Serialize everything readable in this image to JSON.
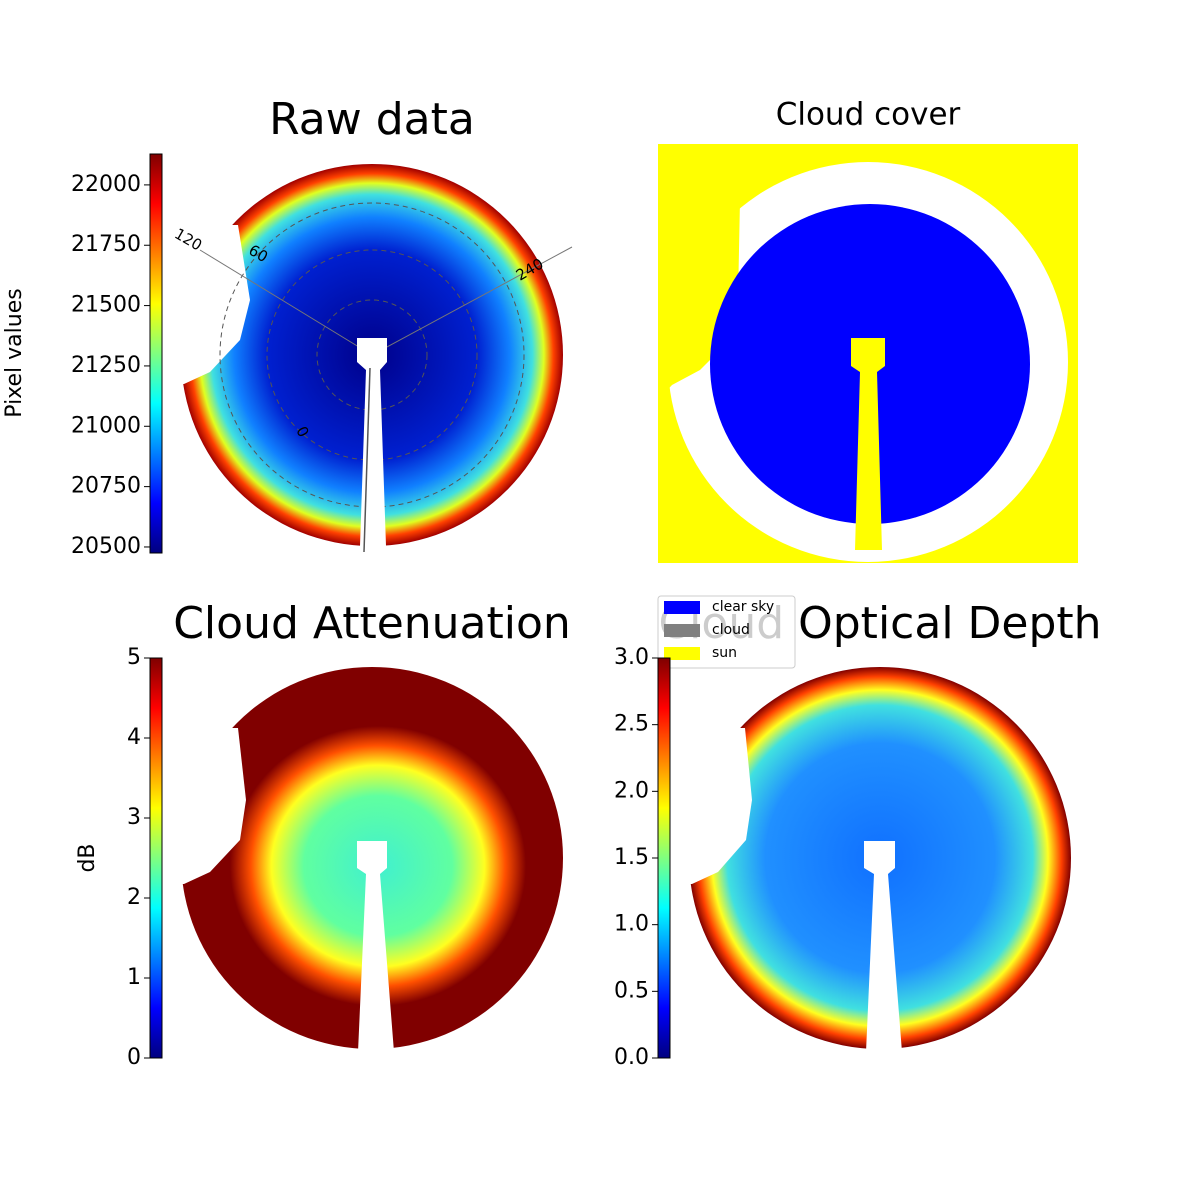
{
  "chart_data": [
    {
      "type": "image",
      "title": "Raw data",
      "colormap": "jet",
      "colorbar": {
        "label": "Pixel values",
        "lim": [
          20475,
          22128
        ],
        "ticks": [
          20500,
          20750,
          21000,
          21250,
          21500,
          21750,
          22000
        ]
      },
      "annotations": [
        "120",
        "60",
        "240",
        "0"
      ]
    },
    {
      "type": "image",
      "title": "Cloud cover",
      "legend": [
        {
          "name": "clear sky",
          "color": "#0000ff"
        },
        {
          "name": "cloud",
          "color": "#808080"
        },
        {
          "name": "sun",
          "color": "#ffff00"
        }
      ]
    },
    {
      "type": "image",
      "title": "Cloud Attenuation",
      "colormap": "jet",
      "colorbar": {
        "label": "dB",
        "lim": [
          0,
          5
        ],
        "ticks": [
          0,
          1,
          2,
          3,
          4,
          5
        ]
      }
    },
    {
      "type": "image",
      "title": "Cloud Optical Depth",
      "colormap": "jet",
      "colorbar": {
        "lim": [
          0,
          3
        ],
        "ticks": [
          {
            "value": 0,
            "label": "0.0"
          },
          0.5,
          {
            "value": 1,
            "label": "1.0"
          },
          1.5,
          {
            "value": 2,
            "label": "2.0"
          },
          2.5,
          {
            "value": 3,
            "label": "3.0"
          }
        ]
      }
    }
  ]
}
